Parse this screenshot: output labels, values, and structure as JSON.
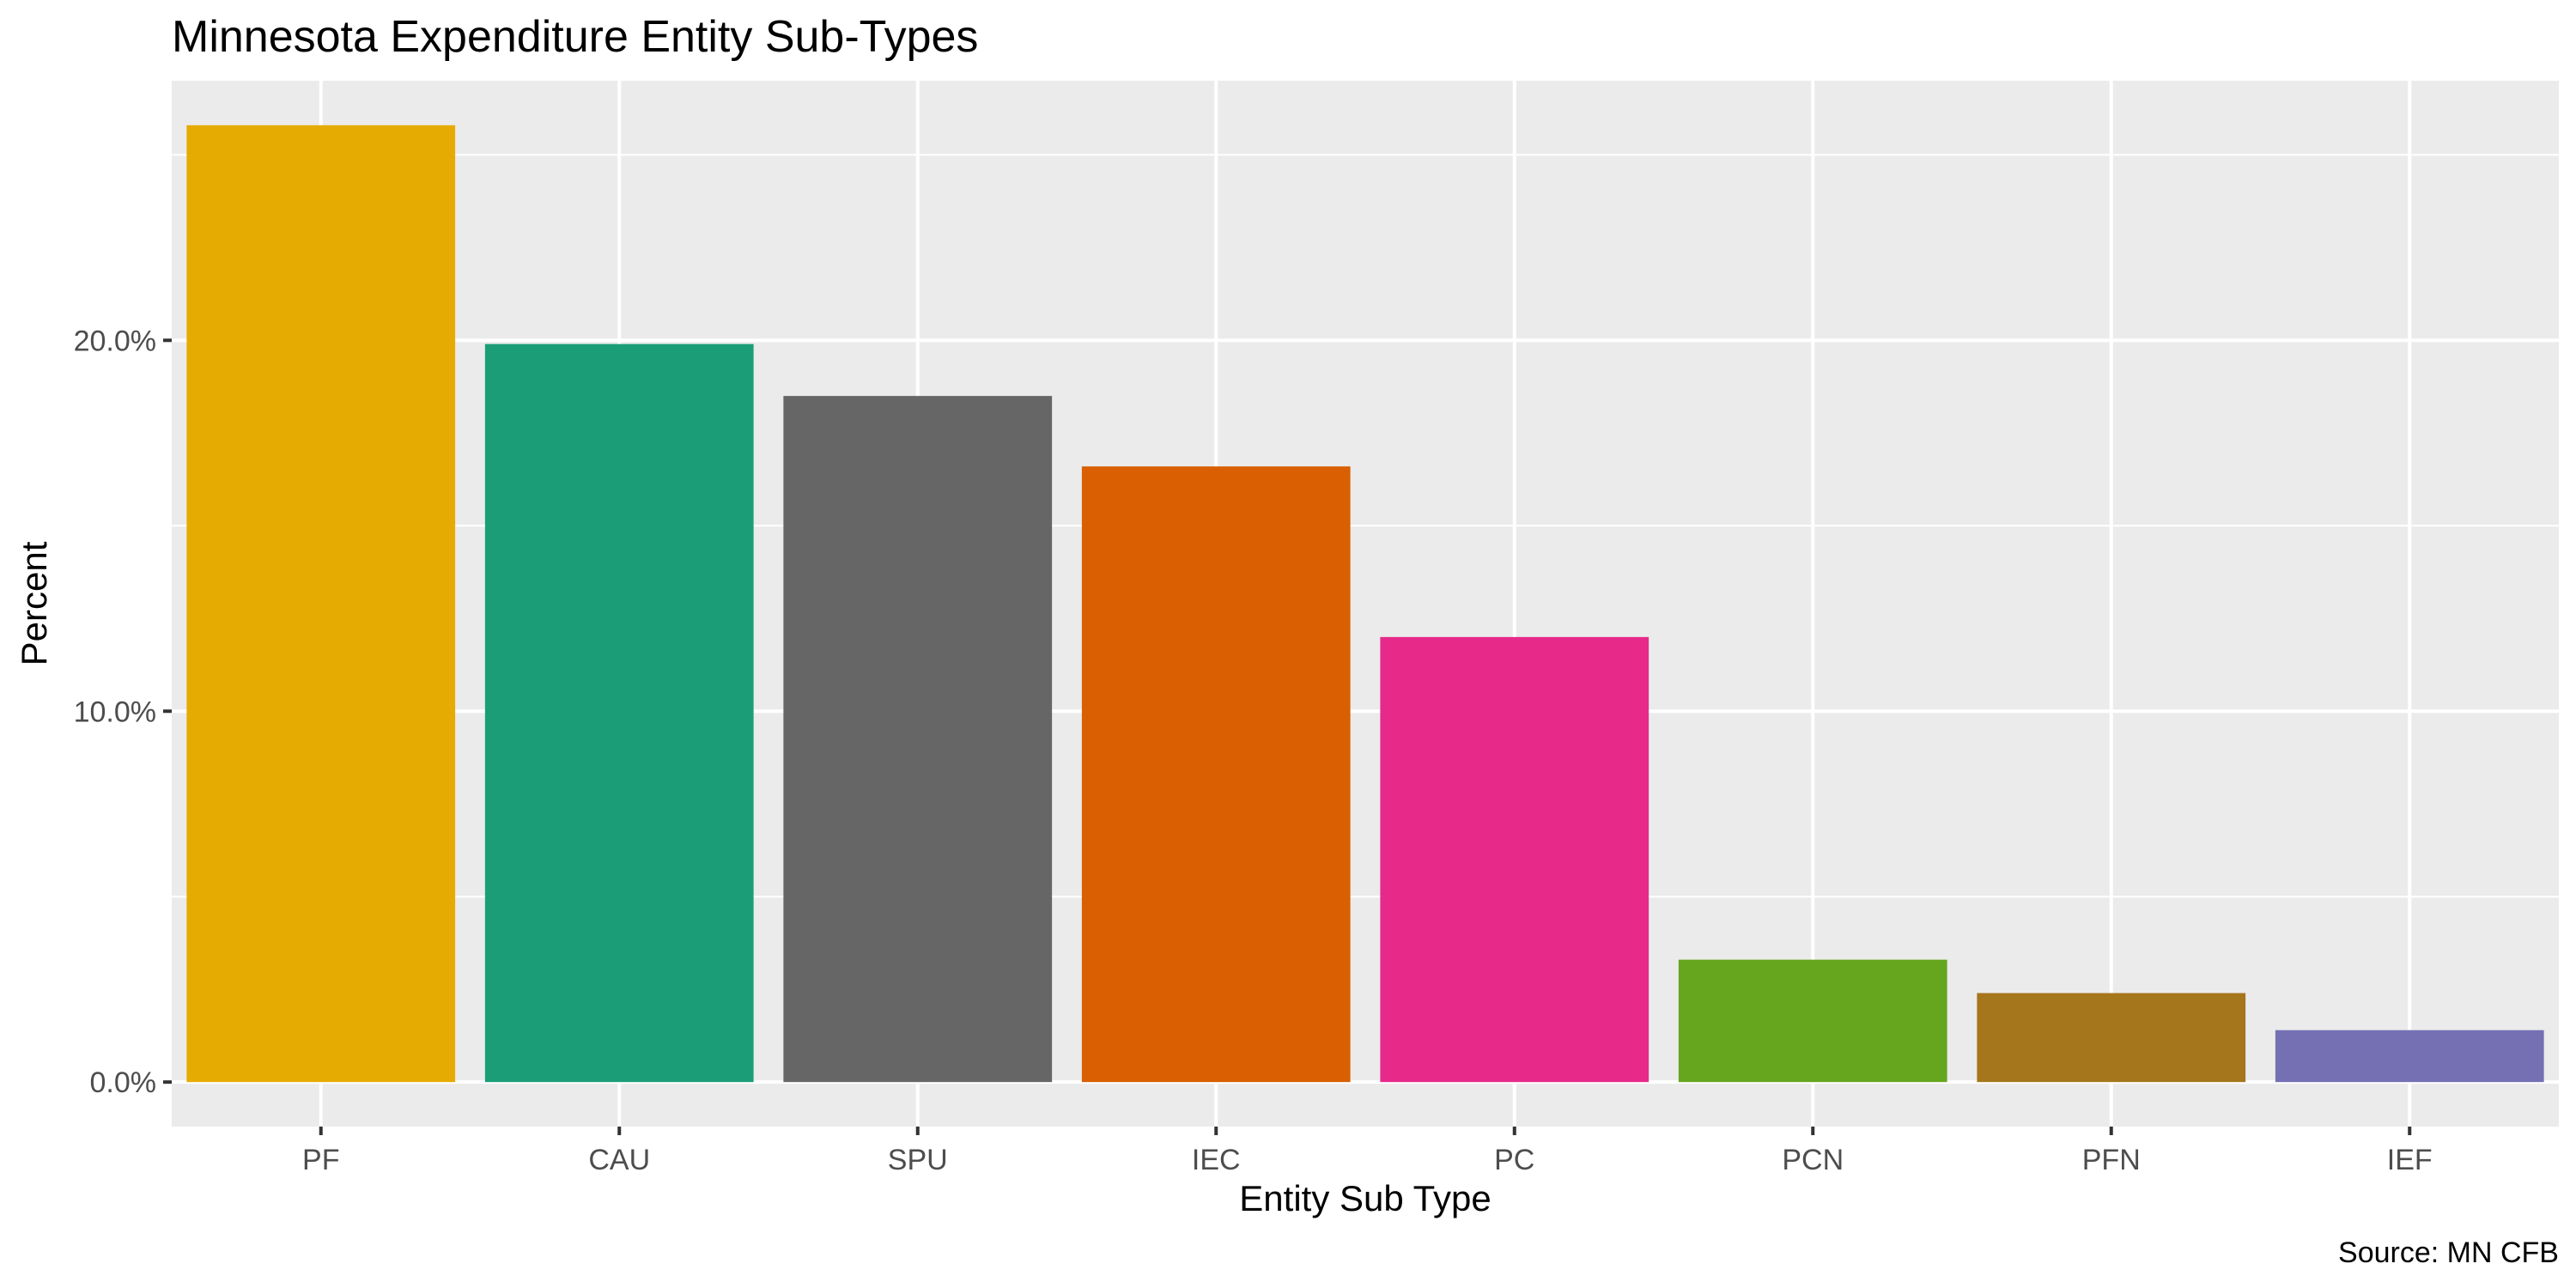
{
  "chart_data": {
    "type": "bar",
    "title": "Minnesota Expenditure Entity Sub-Types",
    "xlabel": "Entity Sub Type",
    "ylabel": "Percent",
    "caption": "Source: MN CFB",
    "categories": [
      "PF",
      "CAU",
      "SPU",
      "IEC",
      "PC",
      "PCN",
      "PFN",
      "IEF"
    ],
    "values": [
      0.258,
      0.199,
      0.185,
      0.166,
      0.12,
      0.033,
      0.024,
      0.014
    ],
    "colors": [
      "#e6ab02",
      "#1b9e77",
      "#666666",
      "#d95f02",
      "#e7298a",
      "#66a61e",
      "#a6761d",
      "#7570b3"
    ],
    "yticks": [
      0,
      0.1,
      0.2
    ],
    "ytick_labels": [
      "0.0%",
      "10.0%",
      "20.0%"
    ],
    "ylim": [
      -0.012,
      0.27
    ],
    "grid": true,
    "panel_background": "#ebebeb",
    "grid_color": "#ffffff",
    "legend": "none"
  }
}
